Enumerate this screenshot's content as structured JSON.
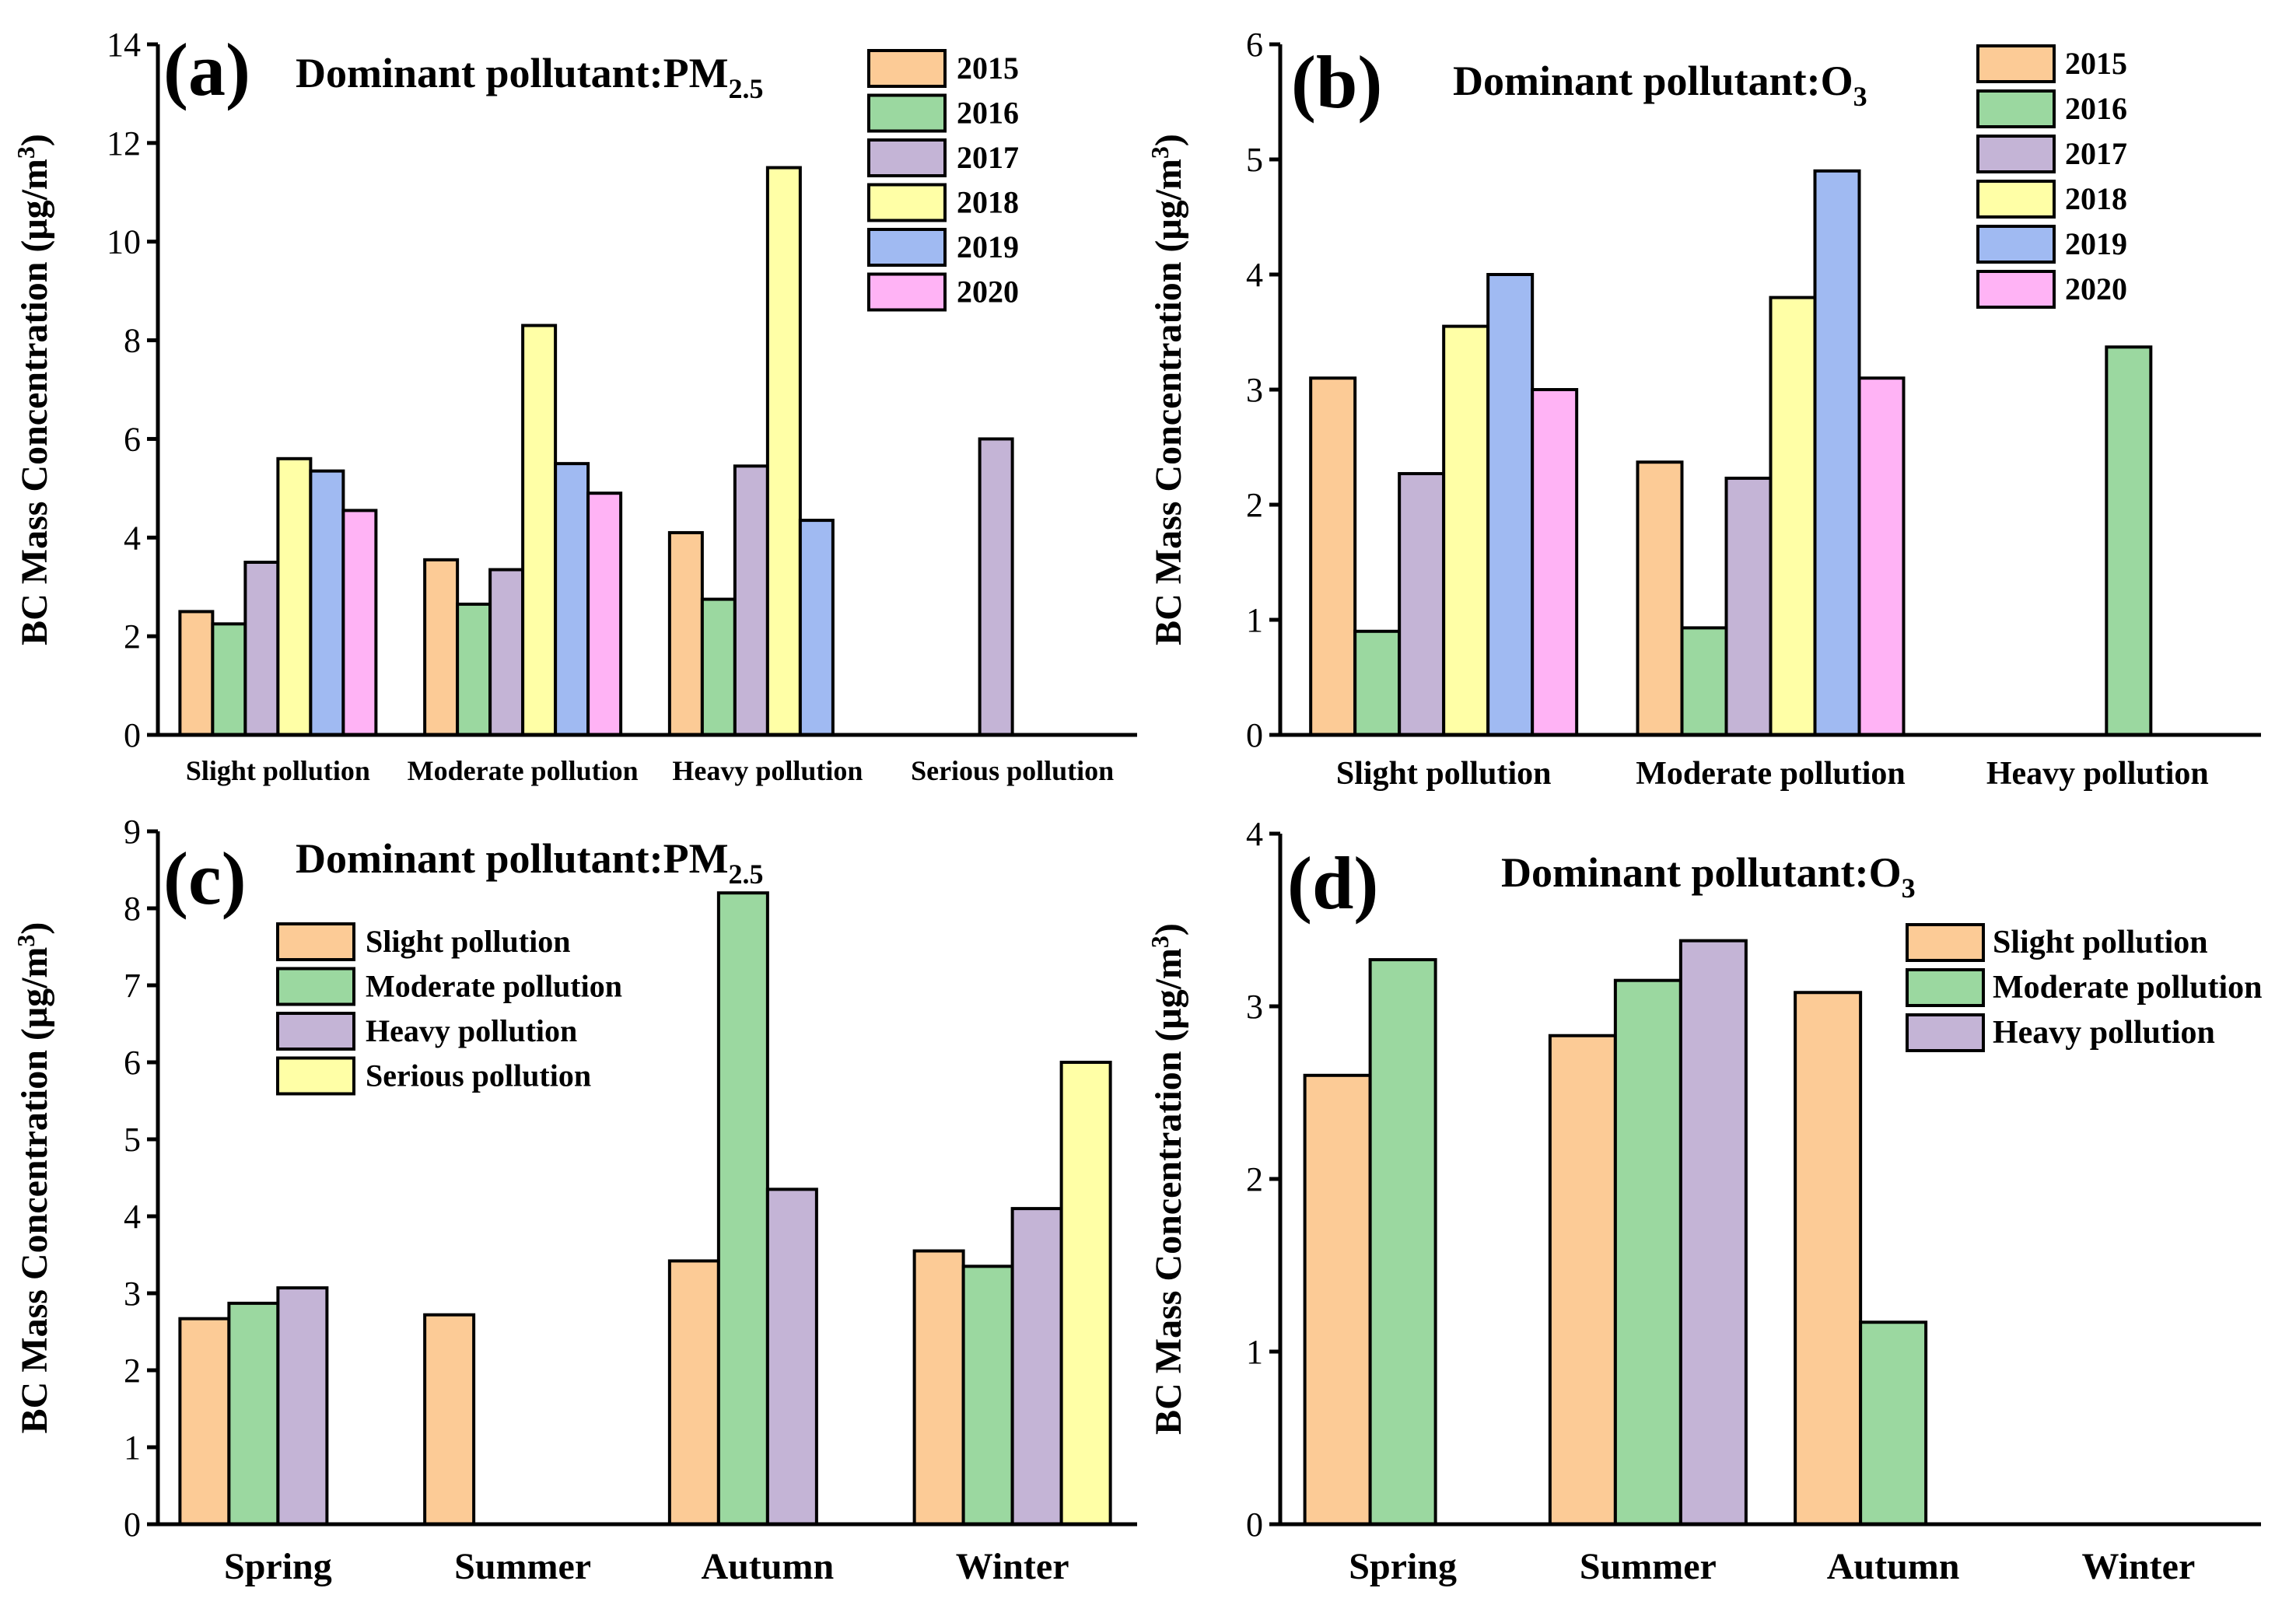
{
  "palette": {
    "2015": "#FCCB96",
    "2016": "#9BD8A0",
    "2017": "#C4B4D6",
    "2018": "#FFFFA6",
    "2019": "#A0BAF2",
    "2020": "#FFB3F5",
    "Slight pollution": "#FCCB96",
    "Moderate pollution": "#9BD8A0",
    "Heavy pollution": "#C4B4D6",
    "Serious pollution": "#FFFFA6"
  },
  "chart_data": [
    {
      "panel": "(a)",
      "type": "bar",
      "title_main": "Dominant pollutant:PM",
      "title_sub": "2.5",
      "ylabel_main": "BC Mass Concentration (μg/m",
      "ylabel_sup": "3",
      "ylabel_end": ")",
      "ylim": [
        0,
        14
      ],
      "yticks": [
        "0",
        "2",
        "4",
        "6",
        "8",
        "10",
        "12",
        "14"
      ],
      "categories": [
        "Slight pollution",
        "Moderate pollution",
        "Heavy pollution",
        "Serious pollution"
      ],
      "legend": [
        "2015",
        "2016",
        "2017",
        "2018",
        "2019",
        "2020"
      ],
      "series": [
        {
          "name": "2015",
          "values": [
            2.5,
            3.55,
            4.1,
            null
          ]
        },
        {
          "name": "2016",
          "values": [
            2.25,
            2.65,
            2.75,
            null
          ]
        },
        {
          "name": "2017",
          "values": [
            3.5,
            3.35,
            5.45,
            6.0
          ]
        },
        {
          "name": "2018",
          "values": [
            5.6,
            8.3,
            11.5,
            null
          ]
        },
        {
          "name": "2019",
          "values": [
            5.35,
            5.5,
            4.35,
            null
          ]
        },
        {
          "name": "2020",
          "values": [
            4.55,
            4.9,
            null,
            null
          ]
        }
      ]
    },
    {
      "panel": "(b)",
      "type": "bar",
      "title_main": "Dominant pollutant:O",
      "title_sub": "3",
      "ylabel_main": "BC Mass Concentration (μg/m",
      "ylabel_sup": "3",
      "ylabel_end": ")",
      "ylim": [
        0,
        6
      ],
      "yticks": [
        "0",
        "1",
        "2",
        "3",
        "4",
        "5",
        "6"
      ],
      "categories": [
        "Slight pollution",
        "Moderate pollution",
        "Heavy pollution"
      ],
      "legend": [
        "2015",
        "2016",
        "2017",
        "2018",
        "2019",
        "2020"
      ],
      "series": [
        {
          "name": "2015",
          "values": [
            3.1,
            2.37,
            null
          ]
        },
        {
          "name": "2016",
          "values": [
            0.9,
            0.93,
            3.37
          ]
        },
        {
          "name": "2017",
          "values": [
            2.27,
            2.23,
            null
          ]
        },
        {
          "name": "2018",
          "values": [
            3.55,
            3.8,
            null
          ]
        },
        {
          "name": "2019",
          "values": [
            4.0,
            4.9,
            null
          ]
        },
        {
          "name": "2020",
          "values": [
            3.0,
            3.1,
            null
          ]
        }
      ]
    },
    {
      "panel": "(c)",
      "type": "bar",
      "title_main": "Dominant pollutant:PM",
      "title_sub": "2.5",
      "ylabel_main": "BC Mass Concentration (μg/m",
      "ylabel_sup": "3",
      "ylabel_end": ")",
      "ylim": [
        0,
        9
      ],
      "yticks": [
        "0",
        "1",
        "2",
        "3",
        "4",
        "5",
        "6",
        "7",
        "8",
        "9"
      ],
      "categories": [
        "Spring",
        "Summer",
        "Autumn",
        "Winter"
      ],
      "legend": [
        "Slight pollution",
        "Moderate pollution",
        "Heavy pollution",
        "Serious pollution"
      ],
      "series": [
        {
          "name": "Slight pollution",
          "values": [
            2.67,
            2.72,
            3.42,
            3.55
          ]
        },
        {
          "name": "Moderate pollution",
          "values": [
            2.87,
            null,
            8.2,
            3.35
          ]
        },
        {
          "name": "Heavy pollution",
          "values": [
            3.07,
            null,
            4.35,
            4.1
          ]
        },
        {
          "name": "Serious pollution",
          "values": [
            null,
            null,
            null,
            6.0
          ]
        }
      ]
    },
    {
      "panel": "(d)",
      "type": "bar",
      "title_main": "Dominant pollutant:O",
      "title_sub": "3",
      "ylabel_main": "BC Mass Concentration (μg/m",
      "ylabel_sup": "3",
      "ylabel_end": ")",
      "ylim": [
        0,
        4
      ],
      "yticks": [
        "0",
        "1",
        "2",
        "3",
        "4"
      ],
      "categories": [
        "Spring",
        "Summer",
        "Autumn",
        "Winter"
      ],
      "legend": [
        "Slight pollution",
        "Moderate pollution",
        "Heavy pollution"
      ],
      "series": [
        {
          "name": "Slight pollution",
          "values": [
            2.6,
            2.83,
            3.08,
            null
          ]
        },
        {
          "name": "Moderate pollution",
          "values": [
            3.27,
            3.15,
            1.17,
            null
          ]
        },
        {
          "name": "Heavy pollution",
          "values": [
            null,
            3.38,
            null,
            null
          ]
        }
      ]
    }
  ]
}
